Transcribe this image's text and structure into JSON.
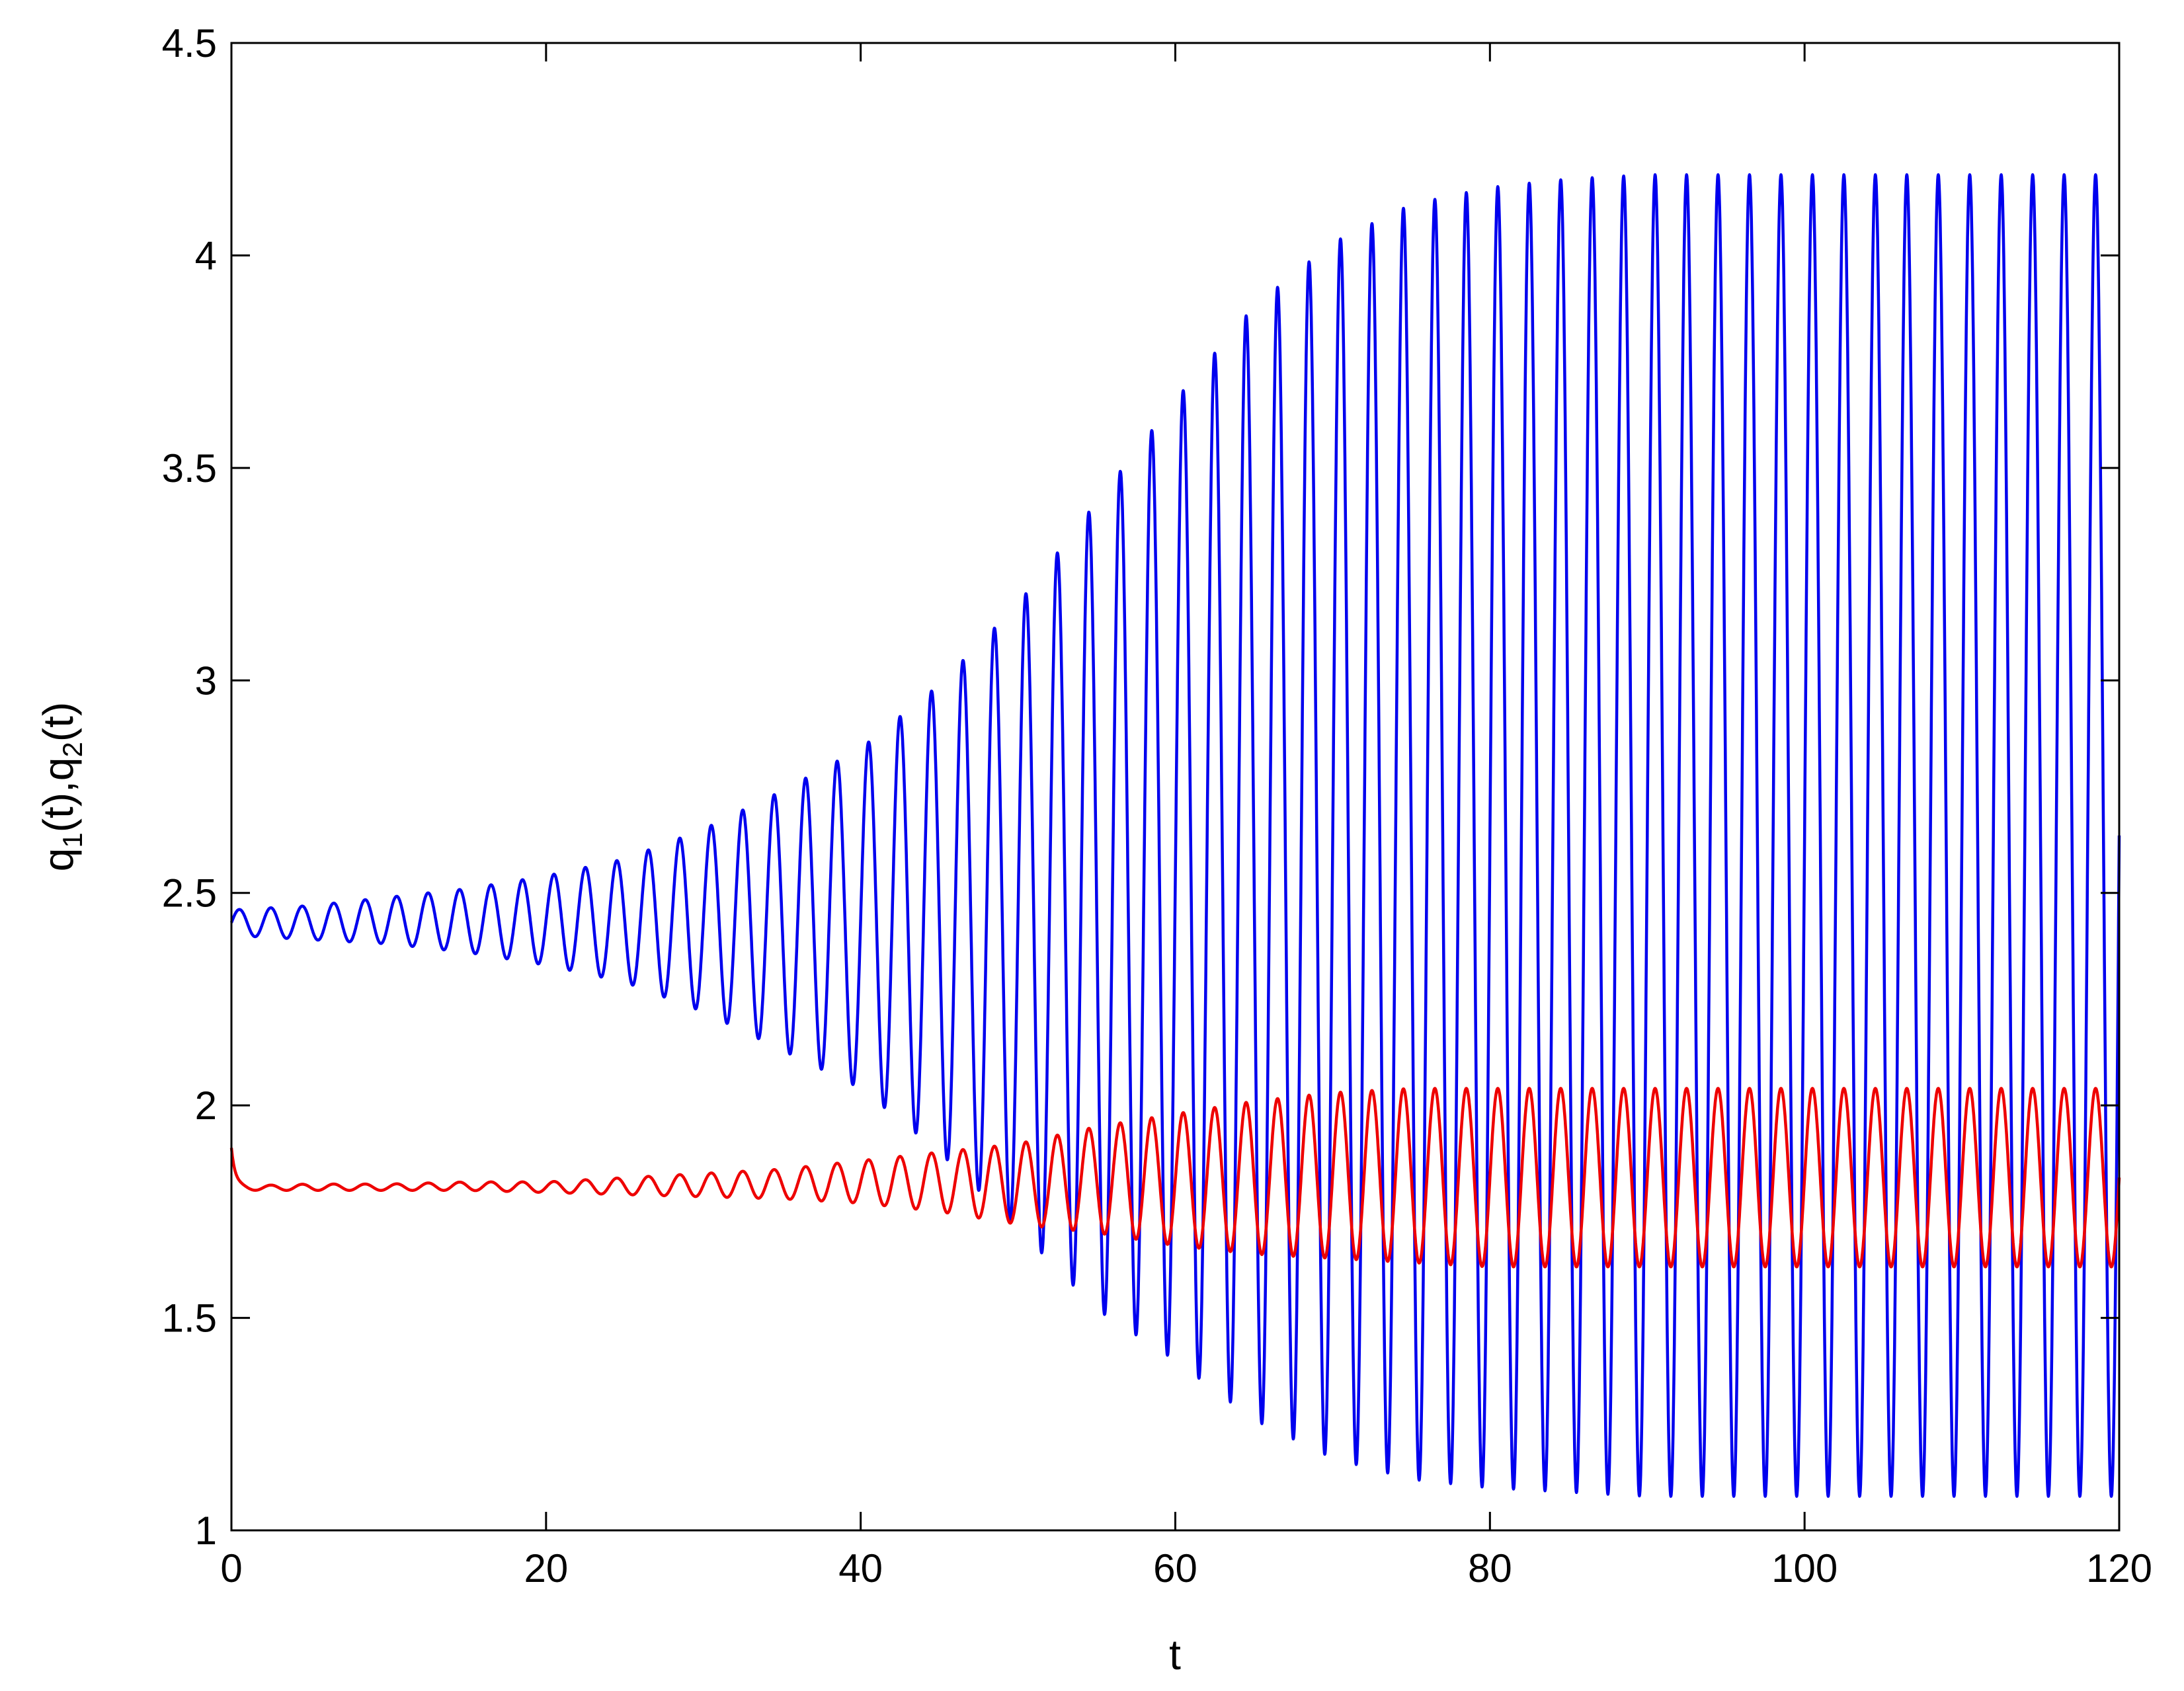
{
  "chart_data": {
    "type": "line",
    "title": "",
    "xlabel": "t",
    "ylabel": {
      "parts": [
        "q",
        "1",
        "(t),q",
        "2",
        "(t)"
      ]
    },
    "xlim": [
      0,
      120
    ],
    "ylim": [
      1,
      4.5
    ],
    "x_ticks": [
      0,
      20,
      40,
      60,
      80,
      100,
      120
    ],
    "x_tick_labels": [
      "0",
      "20",
      "40",
      "60",
      "80",
      "100",
      "120"
    ],
    "y_ticks": [
      1,
      1.5,
      2,
      2.5,
      3,
      3.5,
      4,
      4.5
    ],
    "y_tick_labels": [
      "1",
      "1.5",
      "2",
      "2.5",
      "3",
      "3.5",
      "4",
      "4.5"
    ],
    "grid": false,
    "legend": "none",
    "series": [
      {
        "color": "#0000ee",
        "period": 2.0,
        "x": [
          0,
          5,
          10,
          15,
          20,
          25,
          30,
          35,
          40,
          45,
          50,
          55,
          60,
          65,
          70,
          75,
          80,
          85,
          90,
          95,
          100,
          105,
          110,
          115,
          120
        ],
        "max": [
          2.46,
          2.47,
          2.49,
          2.51,
          2.54,
          2.58,
          2.65,
          2.74,
          2.84,
          2.99,
          3.18,
          3.42,
          3.66,
          3.88,
          4.03,
          4.12,
          4.16,
          4.18,
          4.19,
          4.19,
          4.19,
          4.19,
          4.19,
          4.19,
          4.19
        ],
        "min": [
          2.4,
          2.39,
          2.38,
          2.36,
          2.33,
          2.29,
          2.22,
          2.13,
          2.04,
          1.89,
          1.71,
          1.52,
          1.4,
          1.26,
          1.17,
          1.12,
          1.1,
          1.09,
          1.08,
          1.08,
          1.08,
          1.08,
          1.08,
          1.08,
          1.08
        ]
      },
      {
        "color": "#ee0000",
        "period": 2.0,
        "start": 1.9,
        "x": [
          0,
          5,
          10,
          15,
          20,
          25,
          30,
          35,
          40,
          45,
          50,
          55,
          60,
          65,
          70,
          75,
          80,
          85,
          90,
          95,
          100,
          105,
          110,
          115,
          120
        ],
        "max": [
          1.81,
          1.815,
          1.815,
          1.82,
          1.82,
          1.83,
          1.84,
          1.85,
          1.87,
          1.89,
          1.91,
          1.95,
          1.98,
          2.01,
          2.03,
          2.04,
          2.04,
          2.04,
          2.04,
          2.04,
          2.04,
          2.04,
          2.04,
          2.04,
          2.04
        ],
        "min": [
          1.8,
          1.8,
          1.8,
          1.8,
          1.795,
          1.79,
          1.785,
          1.78,
          1.77,
          1.75,
          1.72,
          1.7,
          1.67,
          1.65,
          1.64,
          1.63,
          1.62,
          1.62,
          1.62,
          1.62,
          1.62,
          1.62,
          1.62,
          1.62,
          1.62
        ]
      }
    ]
  }
}
